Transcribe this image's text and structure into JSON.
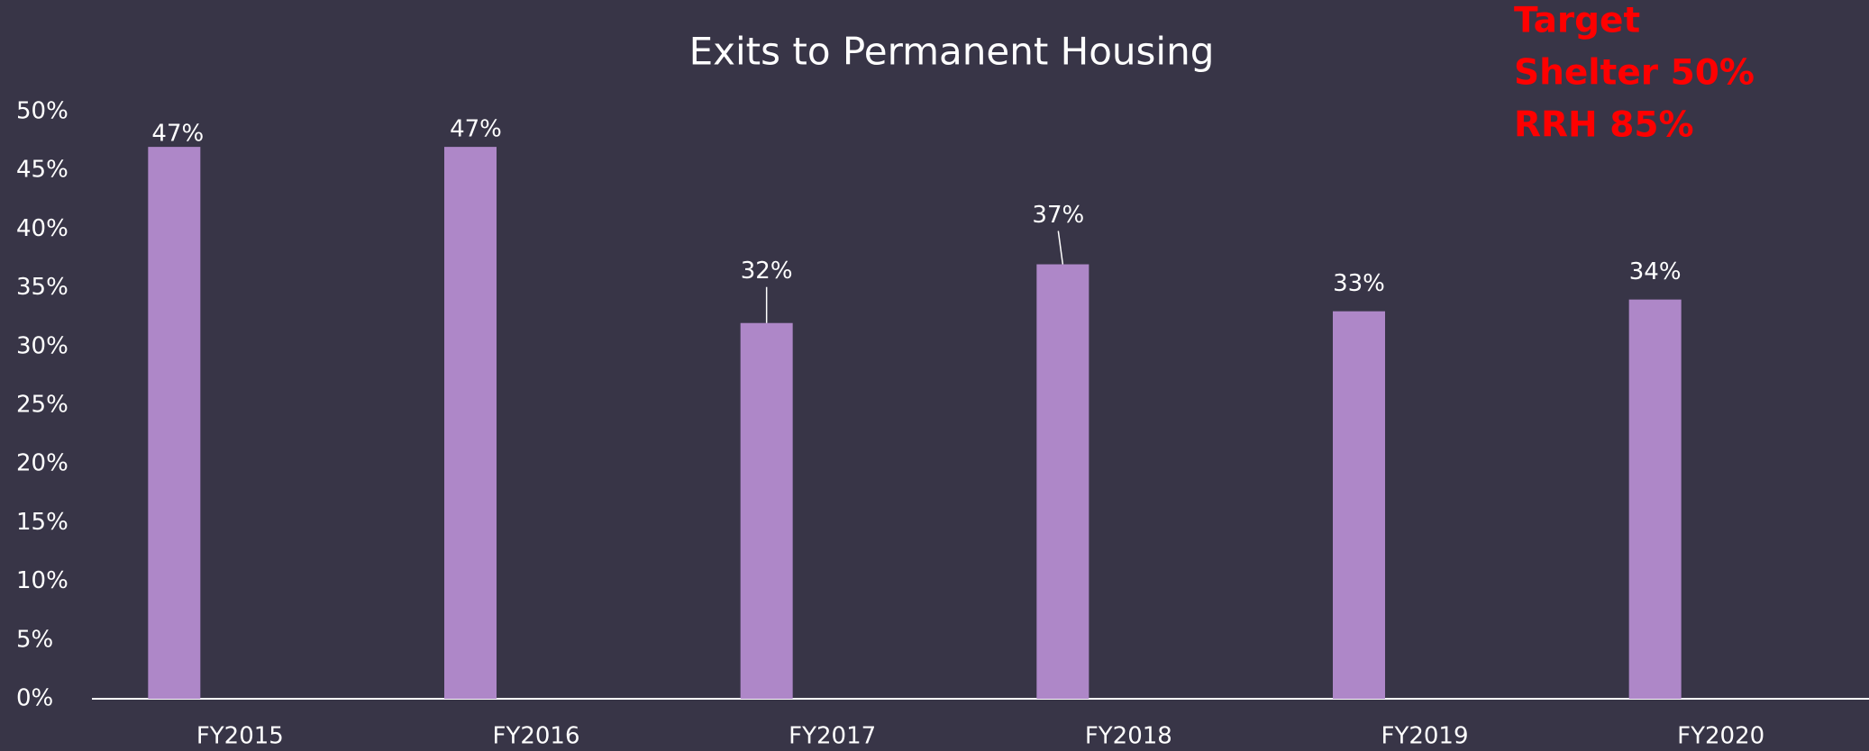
{
  "chart_data": {
    "type": "bar",
    "title": "Exits to Permanent Housing",
    "categories": [
      "FY2015",
      "FY2016",
      "FY2017",
      "FY2018",
      "FY2019",
      "FY2020"
    ],
    "values": [
      47,
      47,
      32,
      37,
      33,
      34
    ],
    "value_labels": [
      "47%",
      "47%",
      "32%",
      "37%",
      "33%",
      "34%"
    ],
    "color": "#ae87c8",
    "ylim": [
      0,
      50
    ],
    "yticks": [
      {
        "value": 0,
        "label": "0%"
      },
      {
        "value": 5,
        "label": "5%"
      },
      {
        "value": 10,
        "label": "10%"
      },
      {
        "value": 15,
        "label": "15%"
      },
      {
        "value": 20,
        "label": "20%"
      },
      {
        "value": 25,
        "label": "25%"
      },
      {
        "value": 30,
        "label": "30%"
      },
      {
        "value": 35,
        "label": "35%"
      },
      {
        "value": 40,
        "label": "40%"
      },
      {
        "value": 45,
        "label": "45%"
      },
      {
        "value": 50,
        "label": "50%"
      }
    ],
    "annotations": [
      "Target",
      "Shelter 50%",
      "RRH 85%"
    ]
  }
}
